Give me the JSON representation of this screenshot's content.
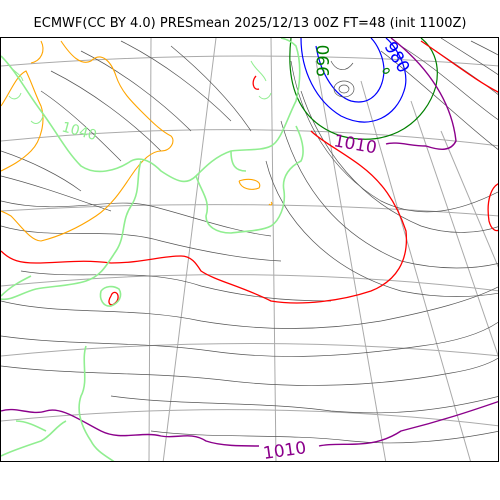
{
  "title": "ECMWF(CC BY 4.0) PRESmean 2025/12/13 00Z FT=48 (init 1100Z)",
  "contour_labels": {
    "l1010_top": "1010",
    "l1010_bottom": "1010",
    "l990": "990",
    "l1040": "1040",
    "l980": "980"
  },
  "colors": {
    "isobar_thin": "#555555",
    "isobar_1010": "#8b008b",
    "isobar_1020": "#ff0000",
    "isobar_990": "#008000",
    "isobar_980": "#0000ff",
    "coastline": "#90ee90",
    "orange_contour": "#ffa500",
    "graticule": "#aaaaaa"
  }
}
